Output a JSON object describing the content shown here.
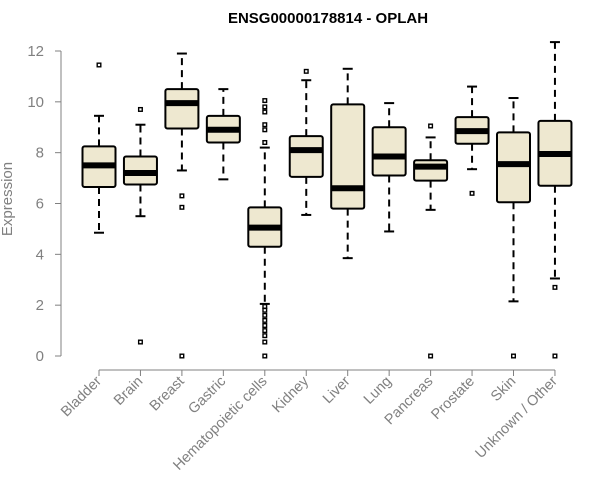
{
  "chart_data": {
    "type": "boxplot",
    "title": "ENSG00000178814 - OPLAH",
    "xlabel": "",
    "ylabel": "Expression",
    "ylim": [
      0,
      12.5
    ],
    "yticks": [
      0,
      2,
      4,
      6,
      8,
      10,
      12
    ],
    "colors": {
      "box_fill": "#eee8d0",
      "stroke": "#000000",
      "axis": "#808080"
    },
    "categories": [
      "Bladder",
      "Brain",
      "Breast",
      "Gastric",
      "Hematopoietic cells",
      "Kidney",
      "Liver",
      "Lung",
      "Pancreas",
      "Prostate",
      "Skin",
      "Unknown / Other"
    ],
    "boxes": [
      {
        "category": "Bladder",
        "whisker_low": 4.85,
        "q1": 6.65,
        "median": 7.5,
        "q3": 8.25,
        "whisker_high": 9.45,
        "outliers": [
          11.45
        ]
      },
      {
        "category": "Brain",
        "whisker_low": 5.5,
        "q1": 6.75,
        "median": 7.2,
        "q3": 7.85,
        "whisker_high": 9.1,
        "outliers": [
          9.7,
          0.55
        ]
      },
      {
        "category": "Breast",
        "whisker_low": 7.3,
        "q1": 8.95,
        "median": 9.95,
        "q3": 10.5,
        "whisker_high": 11.9,
        "outliers": [
          6.3,
          5.85,
          0
        ]
      },
      {
        "category": "Gastric",
        "whisker_low": 6.95,
        "q1": 8.4,
        "median": 8.9,
        "q3": 9.45,
        "whisker_high": 10.5,
        "outliers": []
      },
      {
        "category": "Hematopoietic cells",
        "whisker_low": 2.05,
        "q1": 4.3,
        "median": 5.05,
        "q3": 5.85,
        "whisker_high": 8.2,
        "outliers": [
          10.05,
          9.8,
          9.6,
          9.1,
          8.9,
          8.4,
          1.95,
          1.8,
          1.6,
          1.4,
          1.2,
          1.0,
          0.8,
          0.55,
          0
        ]
      },
      {
        "category": "Kidney",
        "whisker_low": 5.55,
        "q1": 7.05,
        "median": 8.1,
        "q3": 8.65,
        "whisker_high": 10.85,
        "outliers": [
          11.2
        ]
      },
      {
        "category": "Liver",
        "whisker_low": 3.85,
        "q1": 5.8,
        "median": 6.6,
        "q3": 9.9,
        "whisker_high": 11.3,
        "outliers": []
      },
      {
        "category": "Lung",
        "whisker_low": 4.9,
        "q1": 7.1,
        "median": 7.85,
        "q3": 9.0,
        "whisker_high": 9.95,
        "outliers": []
      },
      {
        "category": "Pancreas",
        "whisker_low": 5.75,
        "q1": 6.9,
        "median": 7.45,
        "q3": 7.7,
        "whisker_high": 8.6,
        "outliers": [
          9.05,
          0
        ]
      },
      {
        "category": "Prostate",
        "whisker_low": 7.35,
        "q1": 8.35,
        "median": 8.85,
        "q3": 9.4,
        "whisker_high": 10.6,
        "outliers": [
          6.4
        ]
      },
      {
        "category": "Skin",
        "whisker_low": 2.15,
        "q1": 6.05,
        "median": 7.55,
        "q3": 8.8,
        "whisker_high": 10.15,
        "outliers": [
          0
        ]
      },
      {
        "category": "Unknown / Other",
        "whisker_low": 3.05,
        "q1": 6.7,
        "median": 7.95,
        "q3": 9.25,
        "whisker_high": 12.35,
        "outliers": [
          2.7,
          0
        ]
      }
    ]
  }
}
